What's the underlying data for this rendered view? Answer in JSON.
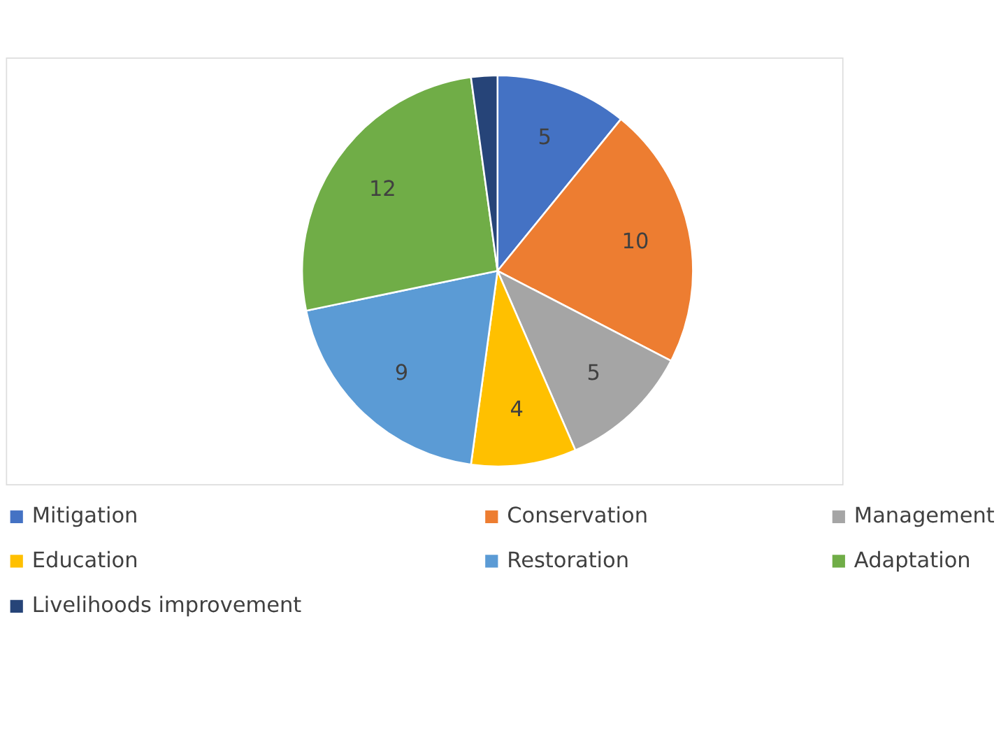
{
  "chart_data": {
    "type": "pie",
    "categories": [
      "Mitigation",
      "Conservation",
      "Management",
      "Education",
      "Restoration",
      "Adaptation",
      "Livelihoods improvement"
    ],
    "values": [
      5,
      10,
      5,
      4,
      9,
      12,
      1
    ],
    "colors": [
      "#4472c4",
      "#ed7d31",
      "#a5a5a5",
      "#ffc000",
      "#5b9bd5",
      "#70ad47",
      "#264478"
    ],
    "value_labels": [
      "5",
      "10",
      "5",
      "4",
      "9",
      "12",
      null
    ],
    "legend": "bottom"
  }
}
